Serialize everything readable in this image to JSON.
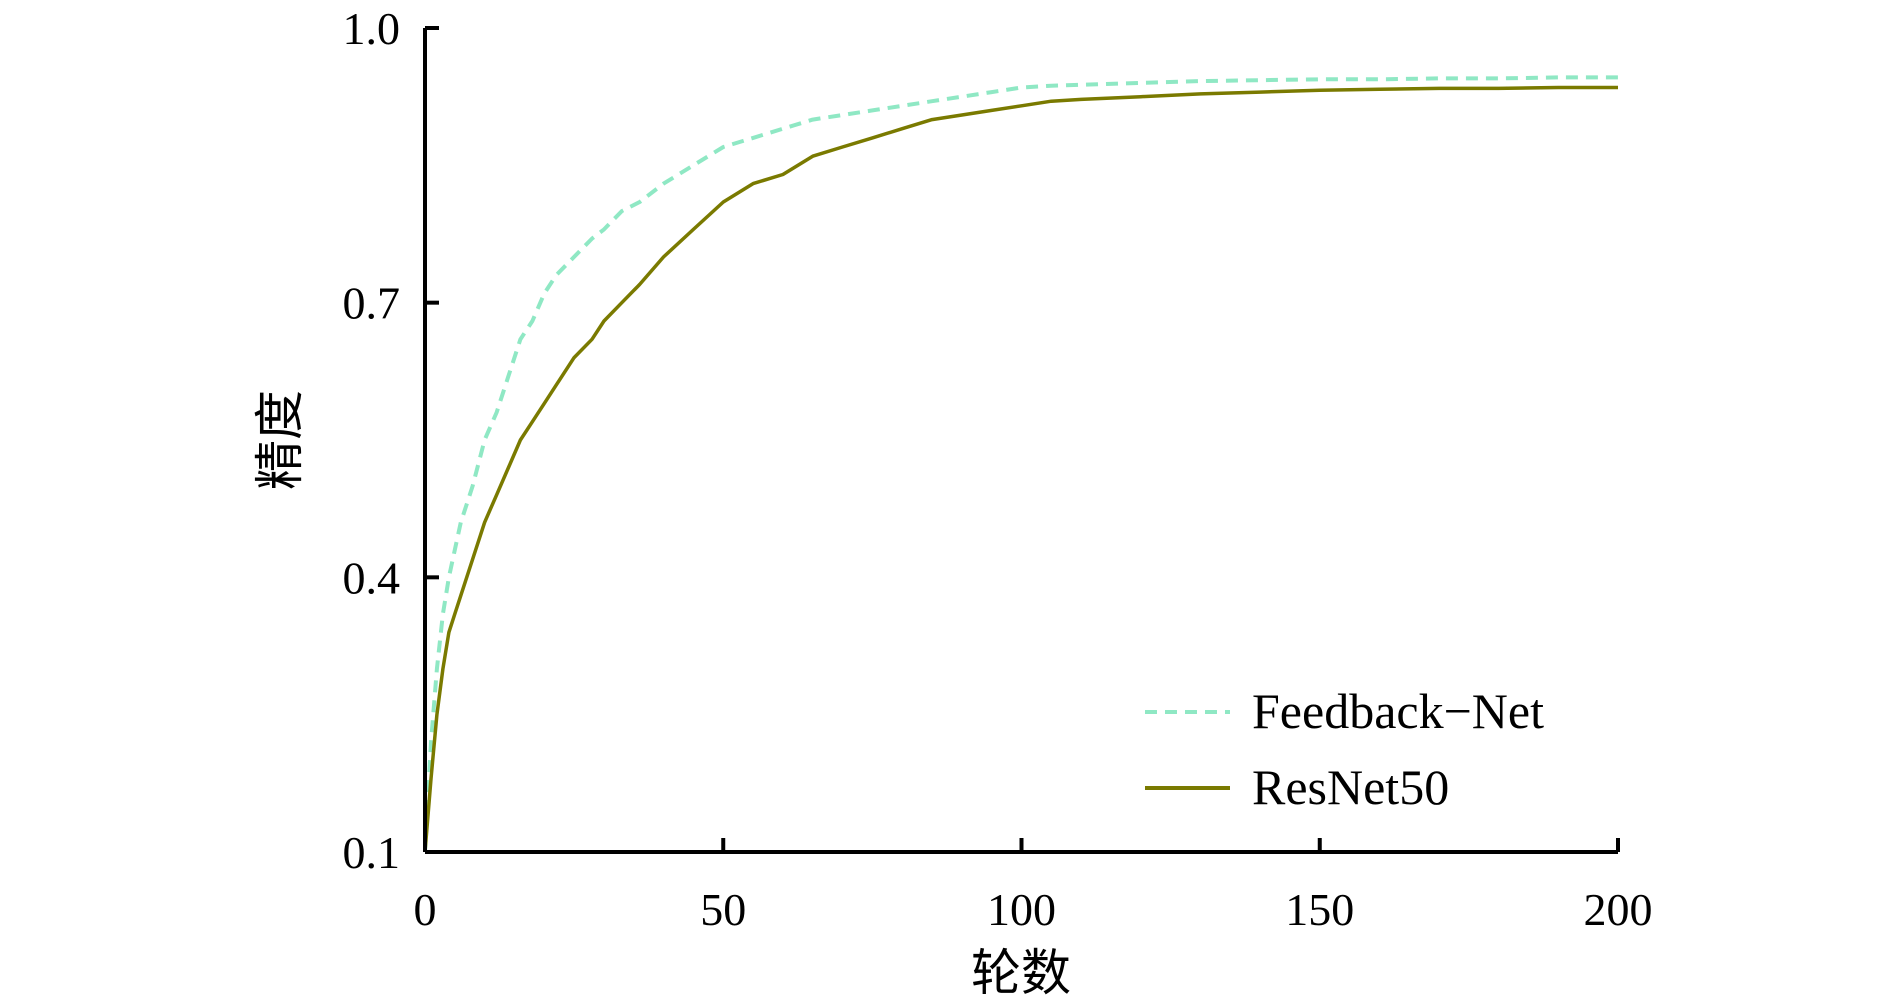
{
  "chart_data": {
    "type": "line",
    "title": "",
    "xlabel": "轮数",
    "ylabel": "精度",
    "xlim": [
      0,
      200
    ],
    "ylim": [
      0.1,
      1.0
    ],
    "x_ticks": [
      "0",
      "50",
      "100",
      "150",
      "200"
    ],
    "y_ticks": [
      "0.1",
      "0.4",
      "0.7",
      "1.0"
    ],
    "grid": false,
    "legend_position": "bottom-right",
    "series": [
      {
        "name": "Feedback−Net",
        "color": "#8fe8c4",
        "style": "dashed",
        "x": [
          0,
          1,
          2,
          3,
          4,
          5,
          6,
          8,
          10,
          12,
          14,
          16,
          18,
          20,
          22,
          25,
          28,
          30,
          33,
          36,
          40,
          45,
          50,
          55,
          60,
          65,
          70,
          75,
          80,
          85,
          90,
          95,
          100,
          105,
          110,
          120,
          130,
          140,
          150,
          160,
          170,
          180,
          190,
          200
        ],
        "values": [
          0.1,
          0.22,
          0.3,
          0.36,
          0.4,
          0.43,
          0.46,
          0.5,
          0.55,
          0.58,
          0.62,
          0.66,
          0.68,
          0.71,
          0.73,
          0.75,
          0.77,
          0.78,
          0.8,
          0.81,
          0.83,
          0.85,
          0.87,
          0.88,
          0.89,
          0.9,
          0.905,
          0.91,
          0.915,
          0.92,
          0.925,
          0.93,
          0.935,
          0.937,
          0.938,
          0.94,
          0.942,
          0.943,
          0.944,
          0.944,
          0.945,
          0.945,
          0.946,
          0.946
        ]
      },
      {
        "name": "ResNet50",
        "color": "#7a7a00",
        "style": "solid",
        "x": [
          0,
          1,
          2,
          3,
          4,
          5,
          6,
          8,
          10,
          12,
          14,
          16,
          18,
          20,
          22,
          25,
          28,
          30,
          33,
          36,
          40,
          45,
          50,
          55,
          60,
          65,
          70,
          75,
          80,
          85,
          90,
          95,
          100,
          105,
          110,
          120,
          130,
          140,
          150,
          160,
          170,
          180,
          190,
          200
        ],
        "values": [
          0.1,
          0.18,
          0.25,
          0.3,
          0.34,
          0.36,
          0.38,
          0.42,
          0.46,
          0.49,
          0.52,
          0.55,
          0.57,
          0.59,
          0.61,
          0.64,
          0.66,
          0.68,
          0.7,
          0.72,
          0.75,
          0.78,
          0.81,
          0.83,
          0.84,
          0.86,
          0.87,
          0.88,
          0.89,
          0.9,
          0.905,
          0.91,
          0.915,
          0.92,
          0.922,
          0.925,
          0.928,
          0.93,
          0.932,
          0.933,
          0.934,
          0.934,
          0.935,
          0.935
        ]
      }
    ]
  }
}
